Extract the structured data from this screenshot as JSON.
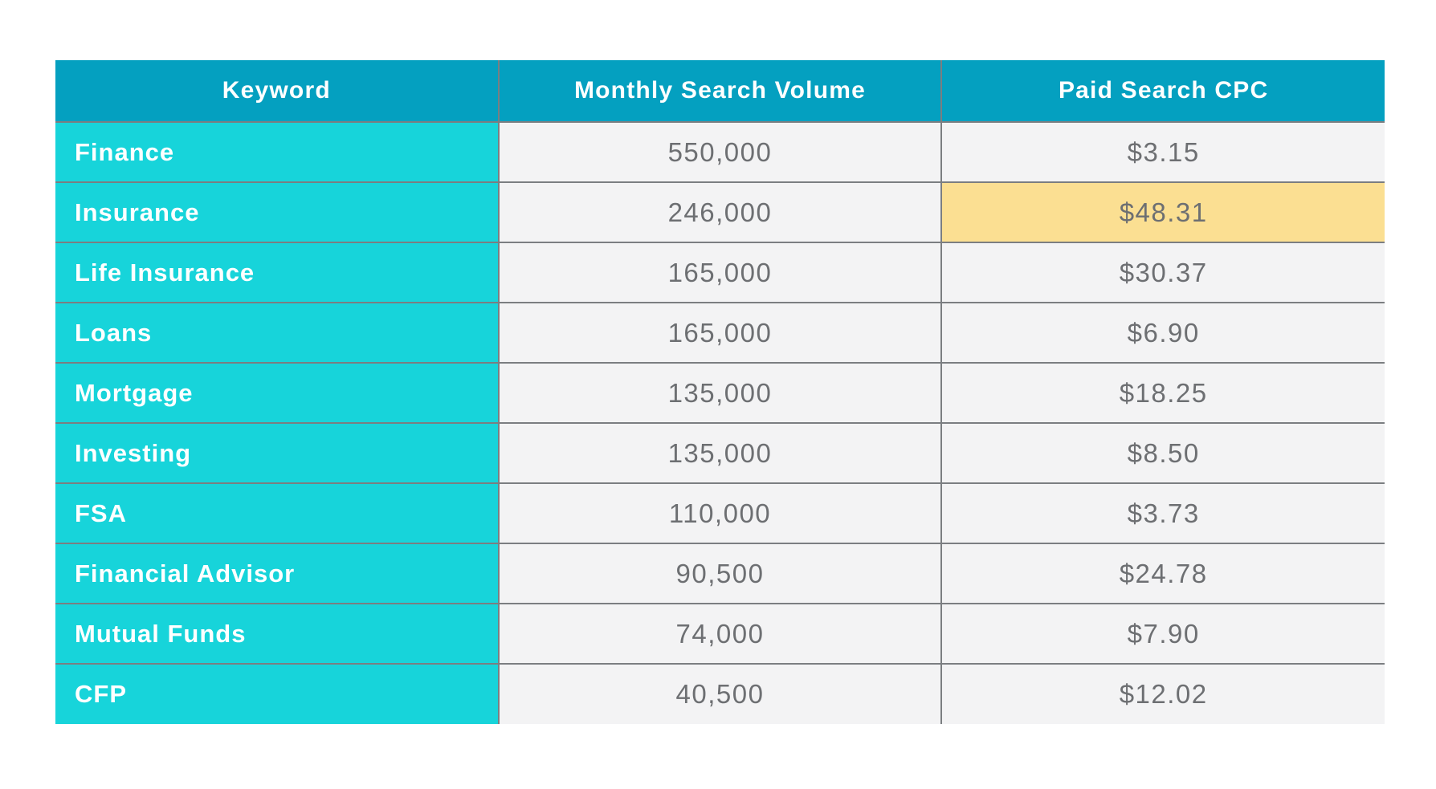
{
  "colors": {
    "page_bg": "#FFFFFF",
    "header_bg": "#04A0C0",
    "keyword_bg": "#17D4DA",
    "cell_bg": "#F3F3F4",
    "highlight_bg": "#FBDF92",
    "border": "#7B7E81",
    "header_text": "#FFFFFF",
    "keyword_text": "#FFFFFF",
    "value_text": "#6D6F72"
  },
  "chart_data": {
    "type": "table",
    "columns": [
      "Keyword",
      "Monthly Search Volume",
      "Paid Search CPC"
    ],
    "rows": [
      {
        "keyword": "Finance",
        "volume": "550,000",
        "cpc": "$3.15",
        "highlight_cpc": false
      },
      {
        "keyword": "Insurance",
        "volume": "246,000",
        "cpc": "$48.31",
        "highlight_cpc": true
      },
      {
        "keyword": "Life Insurance",
        "volume": "165,000",
        "cpc": "$30.37",
        "highlight_cpc": false
      },
      {
        "keyword": "Loans",
        "volume": "165,000",
        "cpc": "$6.90",
        "highlight_cpc": false
      },
      {
        "keyword": "Mortgage",
        "volume": "135,000",
        "cpc": "$18.25",
        "highlight_cpc": false
      },
      {
        "keyword": "Investing",
        "volume": "135,000",
        "cpc": "$8.50",
        "highlight_cpc": false
      },
      {
        "keyword": "FSA",
        "volume": "110,000",
        "cpc": "$3.73",
        "highlight_cpc": false
      },
      {
        "keyword": "Financial Advisor",
        "volume": "90,500",
        "cpc": "$24.78",
        "highlight_cpc": false
      },
      {
        "keyword": "Mutual Funds",
        "volume": "74,000",
        "cpc": "$7.90",
        "highlight_cpc": false
      },
      {
        "keyword": "CFP",
        "volume": "40,500",
        "cpc": "$12.02",
        "highlight_cpc": false
      }
    ],
    "highlighted_cell": {
      "row": "Insurance",
      "column": "Paid Search CPC",
      "value": "$48.31"
    },
    "layout": {
      "grid": "internal borders only",
      "keyword_column_align": "left",
      "value_columns_align": "center"
    }
  }
}
